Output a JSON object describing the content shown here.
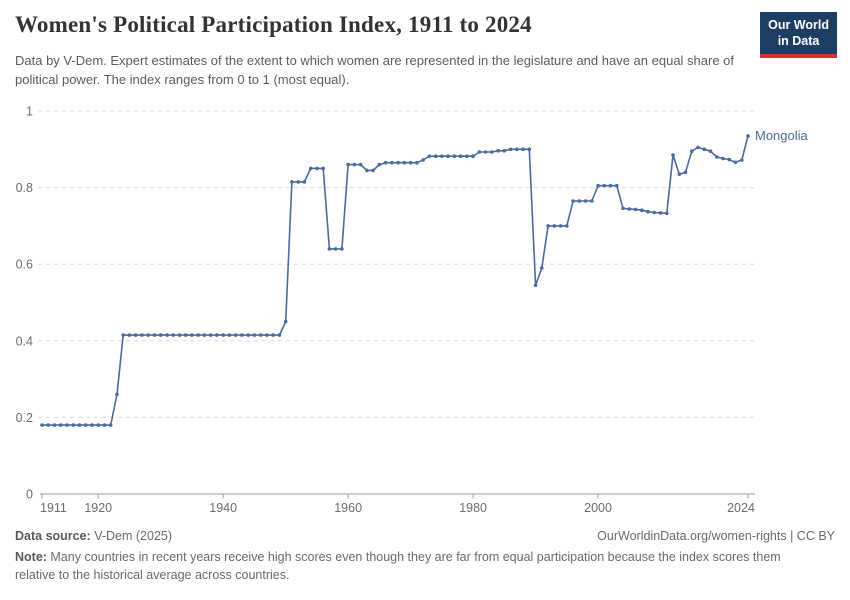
{
  "header": {
    "title": "Women's Political Participation Index, 1911 to 2024",
    "subtitle": "Data by V-Dem. Expert estimates of the extent to which women are represented in the legislature and have an equal share of political power. The index ranges from 0 to 1 (most equal).",
    "logo": {
      "line1": "Our World",
      "line2": "in Data"
    }
  },
  "chart_data": {
    "type": "line",
    "title": "Women's Political Participation Index, 1911 to 2024",
    "xlabel": "",
    "ylabel": "",
    "ylim": [
      0,
      1
    ],
    "xlim": [
      1911,
      2024
    ],
    "grid": "horizontal-dashed",
    "legend_position": "end-of-line-label",
    "y_ticks": [
      0,
      0.2,
      0.4,
      0.6,
      0.8,
      1
    ],
    "y_tick_labels": [
      "0",
      "0.2",
      "0.4",
      "0.6",
      "0.8",
      "1"
    ],
    "x_ticks": [
      1911,
      1920,
      1940,
      1960,
      1980,
      2000,
      2024
    ],
    "x_tick_labels": [
      "1911",
      "1920",
      "1940",
      "1960",
      "1980",
      "2000",
      "2024"
    ],
    "series": [
      {
        "name": "Mongolia",
        "color": "#4c6a9c",
        "start_year": 1911,
        "end_year": 2024,
        "values": [
          0.18,
          0.18,
          0.18,
          0.18,
          0.18,
          0.18,
          0.18,
          0.18,
          0.18,
          0.18,
          0.18,
          0.18,
          0.26,
          0.415,
          0.415,
          0.415,
          0.415,
          0.415,
          0.415,
          0.415,
          0.415,
          0.415,
          0.415,
          0.415,
          0.415,
          0.415,
          0.415,
          0.415,
          0.415,
          0.415,
          0.415,
          0.415,
          0.415,
          0.415,
          0.415,
          0.415,
          0.415,
          0.415,
          0.415,
          0.45,
          0.815,
          0.815,
          0.815,
          0.85,
          0.85,
          0.85,
          0.64,
          0.64,
          0.64,
          0.86,
          0.86,
          0.86,
          0.845,
          0.845,
          0.86,
          0.865,
          0.865,
          0.865,
          0.865,
          0.865,
          0.865,
          0.872,
          0.882,
          0.882,
          0.882,
          0.882,
          0.882,
          0.882,
          0.882,
          0.882,
          0.893,
          0.893,
          0.893,
          0.896,
          0.896,
          0.9,
          0.9,
          0.9,
          0.9,
          0.545,
          0.59,
          0.7,
          0.7,
          0.7,
          0.7,
          0.765,
          0.765,
          0.765,
          0.765,
          0.805,
          0.805,
          0.805,
          0.805,
          0.746,
          0.744,
          0.743,
          0.741,
          0.737,
          0.735,
          0.734,
          0.733,
          0.885,
          0.835,
          0.84,
          0.895,
          0.905,
          0.9,
          0.895,
          0.88,
          0.876,
          0.873,
          0.866,
          0.872,
          0.935
        ]
      }
    ],
    "end_label": "Mongolia"
  },
  "footer": {
    "source_label": "Data source:",
    "source_text": " V-Dem (2025)",
    "link_text": "OurWorldinData.org/women-rights | CC BY",
    "note_label": "Note:",
    "note_text": " Many countries in recent years receive high scores even though they are far from equal participation because the index scores them relative to the historical average across countries."
  },
  "colors": {
    "line": "#4c6a9c",
    "grid": "#dcdcdc",
    "axis": "#9e9e9e",
    "tick_text": "#6e6e6e",
    "logo_navy": "#1d3d63",
    "logo_red": "#d0342c"
  }
}
